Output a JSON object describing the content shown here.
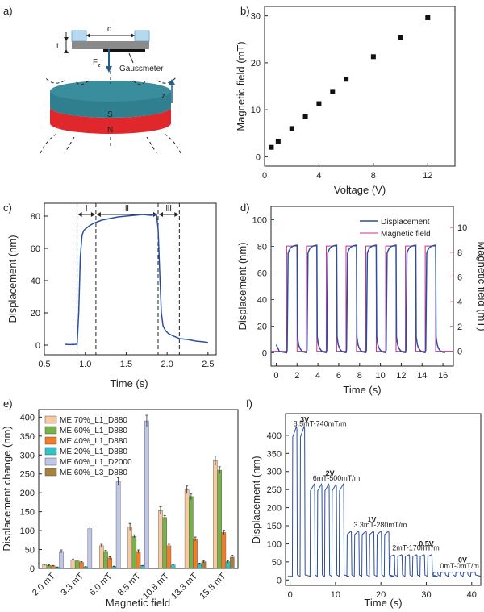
{
  "panels": {
    "a": {
      "label": "a)",
      "dim_d": "d",
      "dim_t": "t",
      "force": "F",
      "force_sub": "z",
      "gaussmeter": "Gaussmeter",
      "pole_s": "S",
      "pole_n": "N",
      "axis_z": "z",
      "colors": {
        "magnet_top": "#2f7f8f",
        "magnet_bottom": "#e0282c",
        "pad": "#b7d9f0",
        "beam": "#8a8a8a"
      }
    },
    "b": {
      "label": "b)"
    },
    "c": {
      "label": "c)",
      "regions": [
        "i",
        "ii",
        "iii"
      ]
    },
    "d": {
      "label": "d)"
    },
    "e": {
      "label": "e)"
    },
    "f": {
      "label": "f)",
      "annotations": [
        {
          "volt": "3V",
          "field": "8.5mT-740mT/m"
        },
        {
          "volt": "2V",
          "field": "6mT-500mT/m"
        },
        {
          "volt": "1V",
          "field": "3.3mT-280mT/m"
        },
        {
          "volt": "0.5V",
          "field": "2mT-170mT/m"
        },
        {
          "volt": "0V",
          "field": "0mT-0mT/m"
        }
      ]
    }
  },
  "chart_data": [
    {
      "id": "b",
      "type": "scatter",
      "xlabel": "Voltage (V)",
      "ylabel": "Magnetic field (mT)",
      "xlim": [
        0,
        14
      ],
      "ylim": [
        -2,
        32
      ],
      "xticks": [
        0,
        4,
        8,
        12
      ],
      "yticks": [
        0,
        10,
        20,
        30
      ],
      "x": [
        0.5,
        1,
        2,
        3,
        4,
        5,
        6,
        8,
        10,
        12
      ],
      "y": [
        2.0,
        3.3,
        6.0,
        8.5,
        11.3,
        13.9,
        16.5,
        21.3,
        25.4,
        29.6
      ]
    },
    {
      "id": "c",
      "type": "line",
      "xlabel": "Time (s)",
      "ylabel": "Displacement (nm)",
      "xlim": [
        0.5,
        2.6
      ],
      "ylim": [
        -6,
        88
      ],
      "xticks": [
        0.5,
        1.0,
        1.5,
        2.0,
        2.5
      ],
      "yticks": [
        0,
        20,
        40,
        60,
        80
      ],
      "region_bounds": [
        0.9,
        1.13,
        1.89,
        2.15
      ],
      "x": [
        0.75,
        0.8,
        0.85,
        0.9,
        0.92,
        0.94,
        0.96,
        0.98,
        1.0,
        1.05,
        1.1,
        1.15,
        1.2,
        1.3,
        1.4,
        1.5,
        1.6,
        1.7,
        1.8,
        1.87,
        1.89,
        1.91,
        1.93,
        1.95,
        1.98,
        2.02,
        2.08,
        2.15,
        2.25,
        2.35,
        2.45,
        2.5
      ],
      "y": [
        0.5,
        0.3,
        0.4,
        0.5,
        20,
        55,
        68,
        71,
        72,
        74,
        75.5,
        76.5,
        77.5,
        78.5,
        79.5,
        80,
        80.5,
        81,
        80.5,
        81,
        72,
        45,
        20,
        12,
        9,
        7,
        5.5,
        4,
        3.5,
        2.5,
        2,
        1.5
      ]
    },
    {
      "id": "d",
      "type": "line",
      "xlabel": "Time (s)",
      "ylabel": "Displacement (nm)",
      "ylabel2": "Magnetic field (mT)",
      "xlim": [
        -0.5,
        17
      ],
      "ylim": [
        -10,
        110
      ],
      "ylim2": [
        -1.2,
        11.7
      ],
      "xticks": [
        0,
        2,
        4,
        6,
        8,
        10,
        12,
        14,
        16
      ],
      "yticks": [
        0,
        20,
        40,
        60,
        80,
        100
      ],
      "yticks2": [
        0,
        2,
        4,
        6,
        8,
        10
      ],
      "legend": [
        "Displacement",
        "Magnetic field"
      ],
      "series_colors": [
        "#2b4fa0",
        "#c9318c"
      ],
      "pulse_on": [
        1.0,
        2.9,
        4.8,
        6.7,
        8.6,
        10.5,
        12.4,
        14.3
      ],
      "pulse_width": 1.0,
      "field_high": 8.5,
      "displacement_high": 81,
      "displacement_low": 0
    },
    {
      "id": "e",
      "type": "bar",
      "xlabel": "Magnetic field",
      "ylabel": "Displacement change (nm)",
      "ylim": [
        0,
        420
      ],
      "yticks": [
        0,
        50,
        100,
        150,
        200,
        250,
        300,
        350,
        400
      ],
      "categories": [
        "2.0 mT",
        "3.3 mT",
        "6.0 mT",
        "8.5 mT",
        "10.8 mT",
        "13.3 mT",
        "15.8 mT"
      ],
      "series": [
        {
          "name": "ME 70%_L1_D880",
          "color": "#f6c9a2",
          "values": [
            10,
            23,
            60,
            110,
            153,
            208,
            285
          ],
          "err": [
            2,
            2,
            4,
            9,
            10,
            10,
            12
          ]
        },
        {
          "name": "ME 60%_L1_D880",
          "color": "#78b04a",
          "values": [
            8,
            20,
            45,
            85,
            135,
            190,
            260
          ],
          "err": [
            2,
            2,
            3,
            4,
            5,
            8,
            9
          ]
        },
        {
          "name": "ME 40%_L1_D880",
          "color": "#ef7d2c",
          "values": [
            7,
            16,
            28,
            45,
            60,
            78,
            95
          ],
          "err": [
            1,
            2,
            3,
            4,
            4,
            5,
            6
          ]
        },
        {
          "name": "ME 20%_L1_D880",
          "color": "#2fc2c7",
          "values": [
            3,
            4,
            5,
            7,
            9,
            12,
            18
          ],
          "err": [
            1,
            1,
            1,
            1,
            2,
            2,
            3
          ]
        },
        {
          "name": "ME 60%_L1_D2000",
          "color": "#c0c6e6",
          "values": [
            45,
            105,
            230,
            390,
            0,
            0,
            0
          ],
          "err": [
            4,
            5,
            10,
            15,
            0,
            0,
            0
          ]
        },
        {
          "name": "ME 60%_L3_D880",
          "color": "#a7803a",
          "values": [
            0,
            0,
            0,
            0,
            0,
            18,
            30
          ],
          "err": [
            0,
            0,
            0,
            0,
            0,
            3,
            5
          ]
        }
      ]
    },
    {
      "id": "f",
      "type": "line",
      "xlabel": "Time (s)",
      "ylabel": "Displacement (nm)",
      "xlim": [
        -1,
        42
      ],
      "ylim": [
        -15,
        460
      ],
      "xticks": [
        0,
        10,
        20,
        30,
        40
      ],
      "yticks": [
        0,
        50,
        100,
        150,
        200,
        250,
        300,
        350,
        400
      ],
      "groups": [
        {
          "start": 0.5,
          "period": 1.7,
          "count": 2,
          "high": 425
        },
        {
          "start": 4.4,
          "period": 1.6,
          "count": 5,
          "high": 265
        },
        {
          "start": 12.5,
          "period": 1.65,
          "count": 6,
          "high": 135
        },
        {
          "start": 22.0,
          "period": 1.65,
          "count": 6,
          "high": 70
        },
        {
          "start": 31.5,
          "period": 1.65,
          "count": 6,
          "high": 22
        }
      ],
      "pulse_width": 1.0,
      "baseline": 10
    }
  ]
}
